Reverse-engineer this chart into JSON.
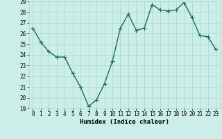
{
  "x": [
    0,
    1,
    2,
    3,
    4,
    5,
    6,
    7,
    8,
    9,
    10,
    11,
    12,
    13,
    14,
    15,
    16,
    17,
    18,
    19,
    20,
    21,
    22,
    23
  ],
  "y": [
    26.5,
    25.2,
    24.3,
    23.8,
    23.8,
    22.3,
    21.0,
    19.2,
    19.8,
    21.3,
    23.4,
    26.5,
    27.8,
    26.3,
    26.5,
    28.7,
    28.2,
    28.1,
    28.2,
    28.9,
    27.5,
    25.8,
    25.7,
    24.5
  ],
  "line_color": "#1a6b5a",
  "marker": "D",
  "marker_size": 2.2,
  "bg_color": "#cceee8",
  "grid_color": "#aad4ce",
  "xlabel": "Humidex (Indice chaleur)",
  "ylim": [
    19,
    29
  ],
  "xlim_min": -0.5,
  "xlim_max": 23.5,
  "yticks": [
    19,
    20,
    21,
    22,
    23,
    24,
    25,
    26,
    27,
    28,
    29
  ],
  "xticks": [
    0,
    1,
    2,
    3,
    4,
    5,
    6,
    7,
    8,
    9,
    10,
    11,
    12,
    13,
    14,
    15,
    16,
    17,
    18,
    19,
    20,
    21,
    22,
    23
  ],
  "xlabel_fontsize": 6.5,
  "tick_fontsize": 5.5,
  "line_width": 1.0
}
